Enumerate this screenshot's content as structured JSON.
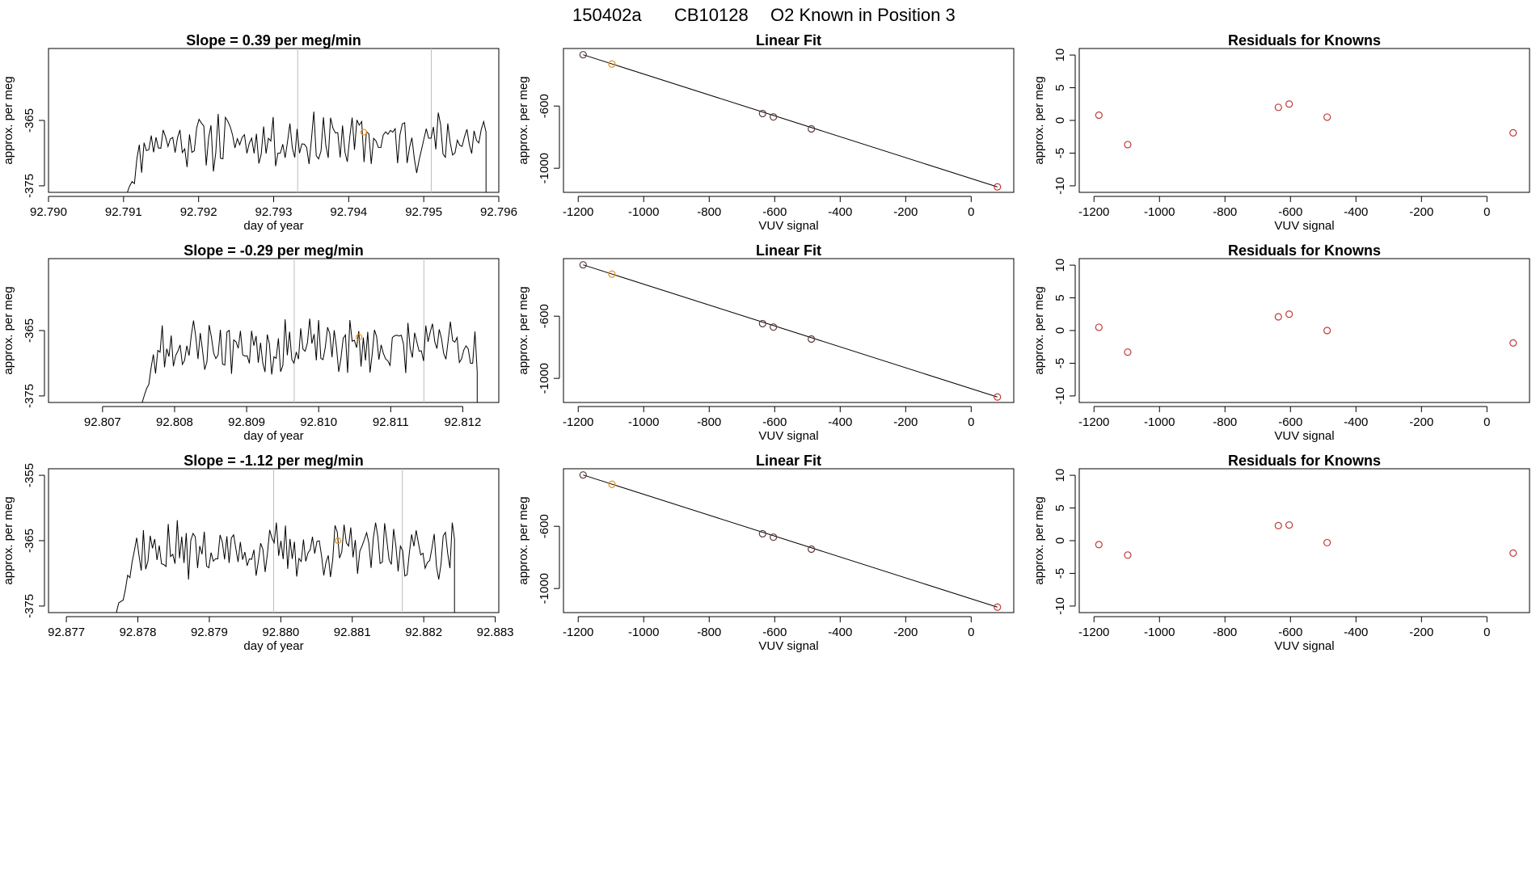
{
  "header": {
    "run_id": "150402a",
    "tank_id": "CB10128",
    "description": "O2 Known in Position  3"
  },
  "chart_data": [
    {
      "type": "line",
      "row": 0,
      "col": 0,
      "title": "Slope =  0.39  per meg/min",
      "xlabel": "day of year",
      "ylabel": "approx. per meg",
      "xlim": [
        92.79,
        92.796
      ],
      "ylim": [
        -376,
        -354
      ],
      "xticks": [
        92.79,
        92.791,
        92.792,
        92.793,
        92.794,
        92.795,
        92.796
      ],
      "xtick_labels": [
        "92.790",
        "92.791",
        "92.792",
        "92.793",
        "92.794",
        "92.795",
        "92.796"
      ],
      "yticks": [
        -375,
        -365
      ],
      "ytick_labels": [
        "-375",
        "-365"
      ],
      "vlines": [
        92.79332,
        92.7951
      ],
      "highlight_point": {
        "x": 92.7942,
        "y": -366.8
      },
      "series": [
        {
          "name": "trace",
          "x_start": 92.79105,
          "x_end": 92.79583,
          "base": -368.0,
          "amp": 3.6,
          "seed": 11,
          "start_y": -376,
          "end_y": -376
        }
      ]
    },
    {
      "type": "scatter",
      "row": 0,
      "col": 1,
      "title": "Linear Fit",
      "xlabel": "VUV signal",
      "ylabel": "approx. per meg",
      "xlim": [
        -1245,
        130
      ],
      "ylim": [
        -1155,
        -230
      ],
      "xticks": [
        -1200,
        -1000,
        -800,
        -600,
        -400,
        -200,
        0
      ],
      "xtick_labels": [
        "-1200",
        "-1000",
        "-800",
        "-600",
        "-400",
        "-200",
        "0"
      ],
      "yticks": [
        -1000,
        -600
      ],
      "ytick_labels": [
        "-1000",
        "-600"
      ],
      "fit_line": {
        "x": [
          -1185,
          80
        ],
        "y": [
          -270,
          -1120
        ]
      },
      "points": {
        "x": [
          -1185,
          -1097,
          -637,
          -604,
          -488,
          80
        ],
        "y": [
          -270,
          -330,
          -648,
          -670,
          -747,
          -1120
        ]
      },
      "point_colors": [
        "#5a3a3a",
        "#e89020",
        "#5a3a3a",
        "#5a3a3a",
        "#5a3a3a",
        "#c03a3a"
      ]
    },
    {
      "type": "scatter",
      "row": 0,
      "col": 2,
      "title": "Residuals for Knowns",
      "xlabel": "VUV signal",
      "ylabel": "approx. per meg",
      "xlim": [
        -1245,
        130
      ],
      "ylim": [
        -11,
        11
      ],
      "xticks": [
        -1200,
        -1000,
        -800,
        -600,
        -400,
        -200,
        0
      ],
      "xtick_labels": [
        "-1200",
        "-1000",
        "-800",
        "-600",
        "-400",
        "-200",
        "0"
      ],
      "yticks": [
        -10,
        -5,
        0,
        5,
        10
      ],
      "ytick_labels": [
        "-10",
        "-5",
        "0",
        "5",
        "10"
      ],
      "points": {
        "x": [
          -1185,
          -1097,
          -637,
          -604,
          -488,
          80
        ],
        "y": [
          0.8,
          -3.7,
          2.0,
          2.5,
          0.5,
          -1.9
        ]
      },
      "point_colors": [
        "#c03a3a",
        "#c03a3a",
        "#c03a3a",
        "#c03a3a",
        "#c03a3a",
        "#c03a3a"
      ]
    },
    {
      "type": "line",
      "row": 1,
      "col": 0,
      "title": "Slope =  -0.29  per meg/min",
      "xlabel": "day of year",
      "ylabel": "approx. per meg",
      "xlim": [
        92.80625,
        92.8125
      ],
      "ylim": [
        -376,
        -354
      ],
      "xticks": [
        92.807,
        92.808,
        92.809,
        92.81,
        92.811,
        92.812
      ],
      "xtick_labels": [
        "92.807",
        "92.808",
        "92.809",
        "92.810",
        "92.811",
        "92.812"
      ],
      "yticks": [
        -375,
        -365
      ],
      "ytick_labels": [
        "-375",
        "-365"
      ],
      "vlines": [
        92.80966,
        92.81146
      ],
      "highlight_point": {
        "x": 92.81056,
        "y": -366.0
      },
      "series": [
        {
          "name": "trace",
          "x_start": 92.80755,
          "x_end": 92.8122,
          "base": -367.5,
          "amp": 3.4,
          "seed": 23,
          "start_y": -376,
          "end_y": -376
        }
      ]
    },
    {
      "type": "scatter",
      "row": 1,
      "col": 1,
      "title": "Linear Fit",
      "xlabel": "VUV signal",
      "ylabel": "approx. per meg",
      "xlim": [
        -1245,
        130
      ],
      "ylim": [
        -1155,
        -230
      ],
      "xticks": [
        -1200,
        -1000,
        -800,
        -600,
        -400,
        -200,
        0
      ],
      "xtick_labels": [
        "-1200",
        "-1000",
        "-800",
        "-600",
        "-400",
        "-200",
        "0"
      ],
      "yticks": [
        -1000,
        -600
      ],
      "ytick_labels": [
        "-1000",
        "-600"
      ],
      "fit_line": {
        "x": [
          -1185,
          80
        ],
        "y": [
          -270,
          -1120
        ]
      },
      "points": {
        "x": [
          -1185,
          -1097,
          -637,
          -604,
          -488,
          80
        ],
        "y": [
          -270,
          -330,
          -648,
          -670,
          -747,
          -1120
        ]
      },
      "point_colors": [
        "#5a3a3a",
        "#e89020",
        "#5a3a3a",
        "#5a3a3a",
        "#5a3a3a",
        "#c03a3a"
      ]
    },
    {
      "type": "scatter",
      "row": 1,
      "col": 2,
      "title": "Residuals for Knowns",
      "xlabel": "VUV signal",
      "ylabel": "approx. per meg",
      "xlim": [
        -1245,
        130
      ],
      "ylim": [
        -11,
        11
      ],
      "xticks": [
        -1200,
        -1000,
        -800,
        -600,
        -400,
        -200,
        0
      ],
      "xtick_labels": [
        "-1200",
        "-1000",
        "-800",
        "-600",
        "-400",
        "-200",
        "0"
      ],
      "yticks": [
        -10,
        -5,
        0,
        5,
        10
      ],
      "ytick_labels": [
        "-10",
        "-5",
        "0",
        "5",
        "10"
      ],
      "points": {
        "x": [
          -1185,
          -1097,
          -637,
          -604,
          -488,
          80
        ],
        "y": [
          0.5,
          -3.3,
          2.1,
          2.5,
          0.0,
          -1.9
        ]
      },
      "point_colors": [
        "#c03a3a",
        "#c03a3a",
        "#c03a3a",
        "#c03a3a",
        "#c03a3a",
        "#c03a3a"
      ]
    },
    {
      "type": "line",
      "row": 2,
      "col": 0,
      "title": "Slope =  -1.12  per meg/min",
      "xlabel": "day of year",
      "ylabel": "approx. per meg",
      "xlim": [
        92.87675,
        92.88305
      ],
      "ylim": [
        -376,
        -354
      ],
      "xticks": [
        92.877,
        92.878,
        92.879,
        92.88,
        92.881,
        92.882,
        92.883
      ],
      "xtick_labels": [
        "92.877",
        "92.878",
        "92.879",
        "92.880",
        "92.881",
        "92.882",
        "92.883"
      ],
      "yticks": [
        -375,
        -365,
        -355
      ],
      "ytick_labels": [
        "-375",
        "-365",
        "-355"
      ],
      "vlines": [
        92.8799,
        92.8817
      ],
      "highlight_point": {
        "x": 92.8808,
        "y": -365.0
      },
      "series": [
        {
          "name": "trace",
          "x_start": 92.8777,
          "x_end": 92.88243,
          "base": -366.5,
          "amp": 3.4,
          "seed": 37,
          "start_y": -376,
          "end_y": -376
        }
      ]
    },
    {
      "type": "scatter",
      "row": 2,
      "col": 1,
      "title": "Linear Fit",
      "xlabel": "VUV signal",
      "ylabel": "approx. per meg",
      "xlim": [
        -1245,
        130
      ],
      "ylim": [
        -1155,
        -230
      ],
      "xticks": [
        -1200,
        -1000,
        -800,
        -600,
        -400,
        -200,
        0
      ],
      "xtick_labels": [
        "-1200",
        "-1000",
        "-800",
        "-600",
        "-400",
        "-200",
        "0"
      ],
      "yticks": [
        -1000,
        -600
      ],
      "ytick_labels": [
        "-1000",
        "-600"
      ],
      "fit_line": {
        "x": [
          -1185,
          80
        ],
        "y": [
          -270,
          -1120
        ]
      },
      "points": {
        "x": [
          -1185,
          -1097,
          -637,
          -604,
          -488,
          80
        ],
        "y": [
          -270,
          -330,
          -648,
          -670,
          -747,
          -1120
        ]
      },
      "point_colors": [
        "#5a3a3a",
        "#e89020",
        "#5a3a3a",
        "#5a3a3a",
        "#5a3a3a",
        "#c03a3a"
      ]
    },
    {
      "type": "scatter",
      "row": 2,
      "col": 2,
      "title": "Residuals for Knowns",
      "xlabel": "VUV signal",
      "ylabel": "approx. per meg",
      "xlim": [
        -1245,
        130
      ],
      "ylim": [
        -11,
        11
      ],
      "xticks": [
        -1200,
        -1000,
        -800,
        -600,
        -400,
        -200,
        0
      ],
      "xtick_labels": [
        "-1200",
        "-1000",
        "-800",
        "-600",
        "-400",
        "-200",
        "0"
      ],
      "yticks": [
        -10,
        -5,
        0,
        5,
        10
      ],
      "ytick_labels": [
        "-10",
        "-5",
        "0",
        "5",
        "10"
      ],
      "points": {
        "x": [
          -1185,
          -1097,
          -637,
          -604,
          -488,
          80
        ],
        "y": [
          -0.6,
          -2.2,
          2.3,
          2.4,
          -0.3,
          -1.9
        ]
      },
      "point_colors": [
        "#c03a3a",
        "#c03a3a",
        "#c03a3a",
        "#c03a3a",
        "#c03a3a",
        "#c03a3a"
      ]
    }
  ]
}
